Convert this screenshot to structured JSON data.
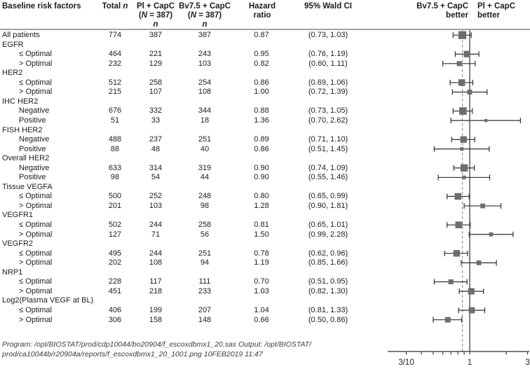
{
  "headers": {
    "factor": "Baseline risk factors",
    "total": {
      "text": "Total ",
      "n": "n"
    },
    "pl": {
      "l1": "Pl + CapC",
      "l2_pre": "(",
      "l2_it": "N",
      "l2_post": " = 387)",
      "l3": "n"
    },
    "bv": {
      "l1": "Bv7.5 + CapC",
      "l2_pre": "(",
      "l2_it": "N",
      "l2_post": " = 387)",
      "l3": "n"
    },
    "hr": {
      "l1": "Hazard",
      "l2": "ratio"
    },
    "ci": "95% Wald CI",
    "better_left": {
      "l1": "Bv7.5 + CapC",
      "l2": "better"
    },
    "better_right": {
      "l1": "Pl + CapC",
      "l2": "better"
    }
  },
  "chart_data": {
    "type": "scatter",
    "variant": "forest-plot",
    "xscale": "log",
    "xlim": [
      0.3,
      3
    ],
    "xticks": [
      0.3,
      0.4,
      0.5,
      0.6,
      0.7,
      0.8,
      0.9,
      1,
      2,
      3
    ],
    "xtick_labels": [
      {
        "v": 0.3,
        "text": "3/10"
      },
      {
        "v": 1,
        "text": "1"
      },
      {
        "v": 3,
        "text": "3"
      }
    ],
    "reference_lines": [
      {
        "x": 1.0,
        "style": "solid"
      },
      {
        "x": 0.87,
        "style": "dashed"
      }
    ],
    "rows": [
      {
        "label": "All patients",
        "group": false,
        "indent": false,
        "total": "774",
        "pl": "387",
        "bv": "387",
        "hr": "0.87",
        "ci": "(0.73, 1.03)"
      },
      {
        "label": "EGFR",
        "group": true
      },
      {
        "label": "≤ Optimal",
        "indent": true,
        "total": "464",
        "pl": "221",
        "bv": "243",
        "hr": "0.95",
        "ci": "(0.76, 1.19)"
      },
      {
        "label": "> Optimal",
        "indent": true,
        "total": "232",
        "pl": "129",
        "bv": "103",
        "hr": "0.82",
        "ci": "(0.60, 1.11)"
      },
      {
        "label": "HER2",
        "group": true
      },
      {
        "label": "≤ Optimal",
        "indent": true,
        "total": "512",
        "pl": "258",
        "bv": "254",
        "hr": "0.86",
        "ci": "(0.69, 1.06)"
      },
      {
        "label": "> Optimal",
        "indent": true,
        "total": "215",
        "pl": "107",
        "bv": "108",
        "hr": "1.00",
        "ci": "(0.72, 1.39)"
      },
      {
        "label": "IHC HER2",
        "group": true
      },
      {
        "label": "Negative",
        "indent": true,
        "total": "676",
        "pl": "332",
        "bv": "344",
        "hr": "0.88",
        "ci": "(0.73, 1.05)"
      },
      {
        "label": "Positive",
        "indent": true,
        "total": "51",
        "pl": "33",
        "bv": "18",
        "hr": "1.36",
        "ci": "(0.70, 2.62)"
      },
      {
        "label": "FISH HER2",
        "group": true
      },
      {
        "label": "Negative",
        "indent": true,
        "total": "488",
        "pl": "237",
        "bv": "251",
        "hr": "0.89",
        "ci": "(0.71, 1.10)"
      },
      {
        "label": "Positive",
        "indent": true,
        "total": "88",
        "pl": "48",
        "bv": "40",
        "hr": "0.86",
        "ci": "(0.51, 1.45)"
      },
      {
        "label": "Overall HER2",
        "group": true
      },
      {
        "label": "Negative",
        "indent": true,
        "total": "633",
        "pl": "314",
        "bv": "319",
        "hr": "0.90",
        "ci": "(0.74, 1.09)"
      },
      {
        "label": "Positive",
        "indent": true,
        "total": "98",
        "pl": "54",
        "bv": "44",
        "hr": "0.90",
        "ci": "(0.55, 1.46)"
      },
      {
        "label": "Tissue VEGFA",
        "group": true
      },
      {
        "label": "≤ Optimal",
        "indent": true,
        "total": "500",
        "pl": "252",
        "bv": "248",
        "hr": "0.80",
        "ci": "(0.65, 0.99)"
      },
      {
        "label": "> Optimal",
        "indent": true,
        "total": "201",
        "pl": "103",
        "bv": "98",
        "hr": "1.28",
        "ci": "(0.90, 1.81)"
      },
      {
        "label": "VEGFR1",
        "group": true
      },
      {
        "label": "≤ Optimal",
        "indent": true,
        "total": "502",
        "pl": "244",
        "bv": "258",
        "hr": "0.81",
        "ci": "(0.65, 1.01)"
      },
      {
        "label": "> Optimal",
        "indent": true,
        "total": "127",
        "pl": "71",
        "bv": "56",
        "hr": "1.50",
        "ci": "(0.99, 2.28)"
      },
      {
        "label": "VEGFR2",
        "group": true
      },
      {
        "label": "≤ Optimal",
        "indent": true,
        "total": "495",
        "pl": "244",
        "bv": "251",
        "hr": "0.78",
        "ci": "(0.62, 0.96)"
      },
      {
        "label": "> Optimal",
        "indent": true,
        "total": "202",
        "pl": "108",
        "bv": "94",
        "hr": "1.19",
        "ci": "(0.85, 1.66)"
      },
      {
        "label": "NRP1",
        "group": true
      },
      {
        "label": "≤ Optimal",
        "indent": true,
        "total": "228",
        "pl": "117",
        "bv": "111",
        "hr": "0.70",
        "ci": "(0.51, 0.95)"
      },
      {
        "label": "> Optimal",
        "indent": true,
        "total": "451",
        "pl": "218",
        "bv": "233",
        "hr": "1.03",
        "ci": "(0.82, 1.30)"
      },
      {
        "label": "Log2(Plasma VEGF at BL)",
        "group": true
      },
      {
        "label": "≤ Optimal",
        "indent": true,
        "total": "406",
        "pl": "199",
        "bv": "207",
        "hr": "1.04",
        "ci": "(0.81, 1.33)"
      },
      {
        "label": "> Optimal",
        "indent": true,
        "total": "306",
        "pl": "158",
        "bv": "148",
        "hr": "0.66",
        "ci": "(0.50, 0.86)"
      }
    ],
    "colors": {
      "marker": "#6d6d6d",
      "whisker": "#2f2f2f",
      "ref_solid": "#4d4d4d",
      "ref_dashed": "#8a8a8a",
      "axis": "#2f2f2f"
    }
  },
  "footer": {
    "line1": "Program: /opt/BIOSTAT/prod/cdp10044/bo20904/f_escoxdbmx1_20.sas Output: /opt/BIOSTAT/",
    "line2": "prod/ca10044b/r20904a/reports/f_escoxdbmx1_20_1001.png 10FEB2019 11:47"
  }
}
